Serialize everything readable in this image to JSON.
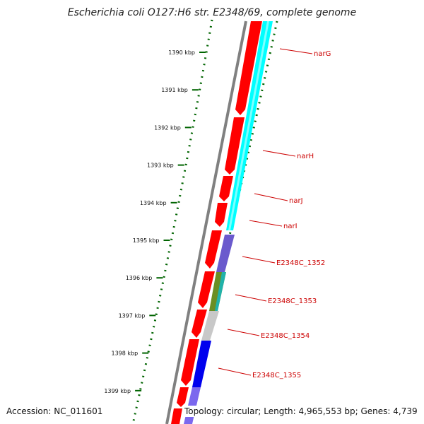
{
  "title": "Escherichia coli O127:H6 str. E2348/69, complete genome",
  "accession": "Accession: NC_011601",
  "topology": "Topology: circular; Length: 4,965,553 bp; Genes: 4,739",
  "scale_labels": [
    "1390 kbp",
    "1391 kbp",
    "1392 kbp",
    "1393 kbp",
    "1394 kbp",
    "1395 kbp",
    "1396 kbp",
    "1397 kbp",
    "1398 kbp",
    "1399 kbp"
  ],
  "gene_labels": [
    "narG",
    "narH",
    "narJ",
    "narI",
    "E2348C_1352",
    "E2348C_1353",
    "E2348C_1354",
    "E2348C_1355"
  ],
  "colors": {
    "forward_cds": "#ff0000",
    "gc_content": "#00ffff",
    "gc_skew_green": "#6b8e23",
    "gc_skew_purple": "#6a5acd",
    "gc_skew_blue": "#0000ee",
    "gray_segment": "#c8c8c8",
    "backbone": "#808080",
    "tick_green": "#006400",
    "label_red": "#cc0000"
  }
}
